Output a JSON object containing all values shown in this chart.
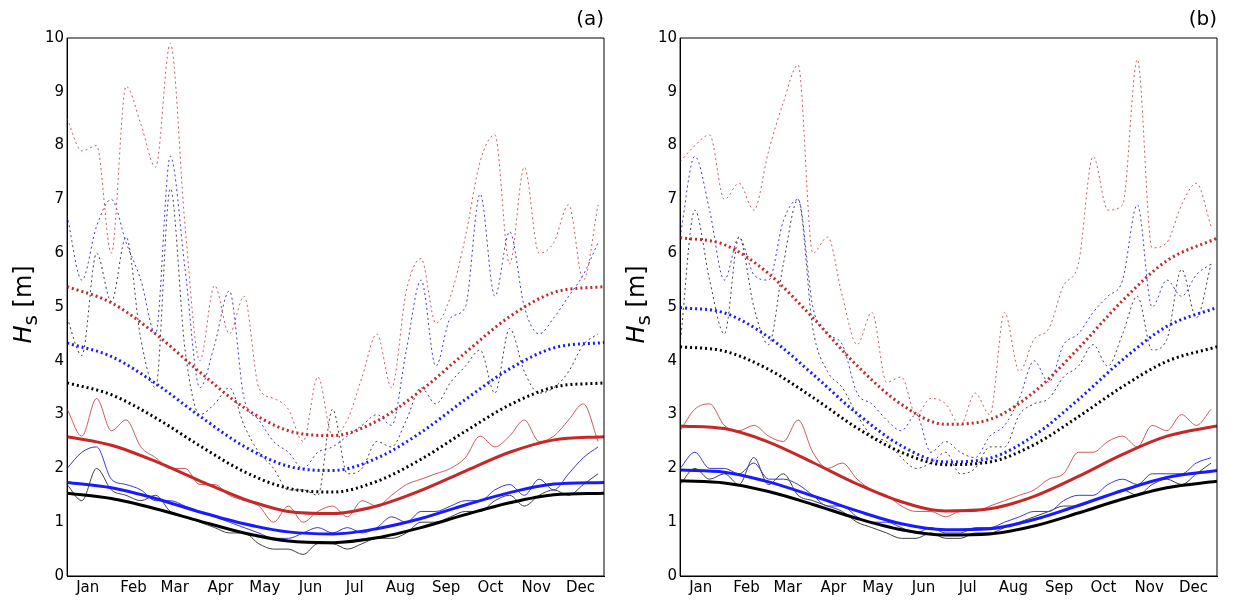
{
  "chart_data": [
    {
      "type": "line",
      "title": "(a)",
      "ylabel": "H$_{s}$ [m]",
      "xlim": [
        "--01-01",
        "--12-31"
      ],
      "ylim": [
        0,
        10
      ],
      "yticks": [
        0,
        1,
        2,
        3,
        4,
        5,
        6,
        7,
        8,
        9,
        10
      ],
      "xticks": [
        {
          "value": "--01-15",
          "label": "Jan"
        },
        {
          "value": "--02-15",
          "label": "Feb"
        },
        {
          "value": "--03-15",
          "label": "Mar"
        },
        {
          "value": "--04-15",
          "label": "Apr"
        },
        {
          "value": "--05-15",
          "label": "May"
        },
        {
          "value": "--06-15",
          "label": "Jun"
        },
        {
          "value": "--07-15",
          "label": "Jul"
        },
        {
          "value": "--08-15",
          "label": "Aug"
        },
        {
          "value": "--09-15",
          "label": "Sep"
        },
        {
          "value": "--10-15",
          "label": "Oct"
        },
        {
          "value": "--11-15",
          "label": "Nov"
        },
        {
          "value": "--12-15",
          "label": "Dec"
        }
      ],
      "x": [
        "--01-01",
        "--01-11",
        "--01-21",
        "--01-31",
        "--02-10",
        "--02-20",
        "--03-02",
        "--03-12",
        "--03-22",
        "--04-01",
        "--04-11",
        "--04-21",
        "--05-01",
        "--05-11",
        "--05-21",
        "--05-31",
        "--06-10",
        "--06-20",
        "--06-30",
        "--07-10",
        "--07-20",
        "--07-30",
        "--08-09",
        "--08-19",
        "--08-29",
        "--09-08",
        "--09-18",
        "--09-28",
        "--10-08",
        "--10-18",
        "--10-28",
        "--11-07",
        "--11-17",
        "--11-27",
        "--12-07",
        "--12-17",
        "--12-27"
      ],
      "series": [
        {
          "color": "#cc5a5a",
          "line_style": "dotted",
          "values": [
            8.5,
            7.9,
            8.0,
            6.0,
            9.1,
            8.4,
            7.6,
            9.9,
            6.5,
            4.0,
            5.4,
            4.5,
            5.2,
            3.5,
            3.3,
            3.1,
            2.5,
            3.7,
            2.6,
            2.9,
            3.7,
            4.5,
            3.5,
            5.3,
            5.9,
            4.7,
            5.2,
            6.3,
            7.7,
            8.2,
            5.8,
            7.6,
            6.0,
            6.2,
            6.9,
            5.5,
            6.9
          ]
        },
        {
          "color": "#3a3ad6",
          "line_style": "dotted",
          "values": [
            6.7,
            5.5,
            6.5,
            7.0,
            6.2,
            5.5,
            4.5,
            7.8,
            5.7,
            3.5,
            4.3,
            5.3,
            3.3,
            2.9,
            2.5,
            2.3,
            2.0,
            2.3,
            2.4,
            2.6,
            2.8,
            3.0,
            2.8,
            4.2,
            5.5,
            3.9,
            4.8,
            5.0,
            7.1,
            5.2,
            6.4,
            5.0,
            4.5,
            4.8,
            5.2,
            5.6,
            6.2
          ]
        },
        {
          "color": "#404040",
          "line_style": "dotted",
          "values": [
            4.8,
            4.1,
            6.0,
            5.1,
            6.3,
            4.4,
            3.5,
            7.2,
            4.2,
            3.0,
            3.2,
            3.5,
            2.8,
            2.3,
            2.0,
            1.6,
            1.6,
            1.5,
            3.1,
            1.9,
            2.0,
            2.5,
            2.4,
            2.9,
            3.5,
            3.2,
            3.6,
            3.9,
            4.2,
            3.4,
            4.6,
            3.8,
            3.4,
            3.5,
            3.8,
            4.3,
            4.5
          ]
        },
        {
          "color": "#cc5a5a",
          "line_style": "solid",
          "values": [
            3.1,
            2.6,
            3.3,
            2.7,
            2.9,
            2.4,
            2.2,
            2.0,
            2.0,
            1.7,
            1.7,
            1.5,
            1.4,
            1.3,
            1.0,
            1.3,
            1.0,
            1.2,
            1.3,
            1.1,
            1.4,
            1.3,
            1.5,
            1.7,
            1.8,
            1.9,
            2.0,
            2.2,
            2.6,
            2.4,
            2.6,
            2.9,
            2.5,
            2.6,
            2.9,
            3.2,
            2.5
          ]
        },
        {
          "color": "#3a3ad6",
          "line_style": "solid",
          "values": [
            2.0,
            2.3,
            2.4,
            1.8,
            1.7,
            1.6,
            1.4,
            1.4,
            1.3,
            1.2,
            1.1,
            1.0,
            0.9,
            0.8,
            0.7,
            0.7,
            0.8,
            0.9,
            0.8,
            0.9,
            0.8,
            0.9,
            1.1,
            1.0,
            1.2,
            1.2,
            1.3,
            1.4,
            1.4,
            1.6,
            1.7,
            1.5,
            1.8,
            1.6,
            1.9,
            2.2,
            2.4
          ]
        },
        {
          "color": "#404040",
          "line_style": "solid",
          "values": [
            1.7,
            1.4,
            2.0,
            1.6,
            1.5,
            1.4,
            1.5,
            1.2,
            1.1,
            1.0,
            0.9,
            0.8,
            0.8,
            0.6,
            0.5,
            0.5,
            0.4,
            0.6,
            0.6,
            0.5,
            0.6,
            0.7,
            0.7,
            0.8,
            1.0,
            1.0,
            1.1,
            1.2,
            1.2,
            1.4,
            1.5,
            1.3,
            1.5,
            1.6,
            1.5,
            1.7,
            1.9
          ]
        },
        {
          "color": "#c62828",
          "line_style": "dotted",
          "x": [
            "--01-01",
            "--01-31",
            "--03-02",
            "--04-01",
            "--05-01",
            "--05-31",
            "--06-30",
            "--07-30",
            "--08-29",
            "--09-28",
            "--10-28",
            "--11-27",
            "--12-31"
          ],
          "values": [
            5.38,
            5.08,
            4.5,
            3.79,
            3.13,
            2.7,
            2.61,
            2.88,
            3.45,
            4.15,
            4.82,
            5.27,
            5.38
          ]
        },
        {
          "color": "#1a1aff",
          "line_style": "dotted",
          "x": [
            "--01-01",
            "--01-31",
            "--03-02",
            "--04-01",
            "--05-01",
            "--05-31",
            "--06-30",
            "--07-30",
            "--08-29",
            "--09-28",
            "--10-28",
            "--11-27",
            "--12-31"
          ],
          "values": [
            4.33,
            4.08,
            3.58,
            2.97,
            2.41,
            2.04,
            1.96,
            2.19,
            2.67,
            3.28,
            3.85,
            4.24,
            4.34
          ]
        },
        {
          "color": "#000000",
          "line_style": "dotted",
          "x": [
            "--01-01",
            "--01-31",
            "--03-02",
            "--04-01",
            "--05-01",
            "--05-31",
            "--06-30",
            "--07-30",
            "--08-29",
            "--09-28",
            "--10-28",
            "--11-27",
            "--12-31"
          ],
          "values": [
            3.59,
            3.37,
            2.94,
            2.42,
            1.94,
            1.63,
            1.56,
            1.76,
            2.17,
            2.69,
            3.18,
            3.51,
            3.59
          ]
        },
        {
          "color": "#c62828",
          "line_style": "solid",
          "x": [
            "--01-01",
            "--01-31",
            "--03-02",
            "--04-01",
            "--05-01",
            "--05-31",
            "--06-30",
            "--07-30",
            "--08-29",
            "--09-28",
            "--10-28",
            "--11-27",
            "--12-31"
          ],
          "values": [
            2.59,
            2.43,
            2.13,
            1.77,
            1.43,
            1.2,
            1.16,
            1.3,
            1.59,
            1.95,
            2.3,
            2.53,
            2.59
          ]
        },
        {
          "color": "#1a1aff",
          "line_style": "solid",
          "x": [
            "--01-01",
            "--01-31",
            "--03-02",
            "--04-01",
            "--05-01",
            "--05-31",
            "--06-30",
            "--07-30",
            "--08-29",
            "--09-28",
            "--10-28",
            "--11-27",
            "--12-31"
          ],
          "values": [
            1.74,
            1.64,
            1.44,
            1.19,
            0.97,
            0.82,
            0.78,
            0.88,
            1.07,
            1.32,
            1.55,
            1.71,
            1.74
          ]
        },
        {
          "color": "#000000",
          "line_style": "solid",
          "x": [
            "--01-01",
            "--01-31",
            "--03-02",
            "--04-01",
            "--05-01",
            "--05-31",
            "--06-30",
            "--07-30",
            "--08-29",
            "--09-28",
            "--10-28",
            "--11-27",
            "--12-31"
          ],
          "values": [
            1.54,
            1.44,
            1.25,
            1.02,
            0.8,
            0.65,
            0.62,
            0.71,
            0.9,
            1.14,
            1.36,
            1.51,
            1.54
          ]
        }
      ]
    },
    {
      "type": "line",
      "title": "(b)",
      "ylabel": "H$_{s}$ [m]",
      "xlim": [
        "--01-01",
        "--12-31"
      ],
      "ylim": [
        0,
        10
      ],
      "yticks": [
        0,
        1,
        2,
        3,
        4,
        5,
        6,
        7,
        8,
        9,
        10
      ],
      "xticks": [
        {
          "value": "--01-15",
          "label": "Jan"
        },
        {
          "value": "--02-15",
          "label": "Feb"
        },
        {
          "value": "--03-15",
          "label": "Mar"
        },
        {
          "value": "--04-15",
          "label": "Apr"
        },
        {
          "value": "--05-15",
          "label": "May"
        },
        {
          "value": "--06-15",
          "label": "Jun"
        },
        {
          "value": "--07-15",
          "label": "Jul"
        },
        {
          "value": "--08-15",
          "label": "Aug"
        },
        {
          "value": "--09-15",
          "label": "Sep"
        },
        {
          "value": "--10-15",
          "label": "Oct"
        },
        {
          "value": "--11-15",
          "label": "Nov"
        },
        {
          "value": "--12-15",
          "label": "Dec"
        }
      ],
      "x": [
        "--01-01",
        "--01-11",
        "--01-21",
        "--01-31",
        "--02-10",
        "--02-20",
        "--03-02",
        "--03-12",
        "--03-22",
        "--04-01",
        "--04-11",
        "--04-21",
        "--05-01",
        "--05-11",
        "--05-21",
        "--05-31",
        "--06-10",
        "--06-20",
        "--06-30",
        "--07-10",
        "--07-20",
        "--07-30",
        "--08-09",
        "--08-19",
        "--08-29",
        "--09-08",
        "--09-18",
        "--09-28",
        "--10-08",
        "--10-18",
        "--10-28",
        "--11-07",
        "--11-17",
        "--11-27",
        "--12-07",
        "--12-17",
        "--12-27"
      ],
      "series": [
        {
          "color": "#cc5a5a",
          "line_style": "dotted",
          "values": [
            7.7,
            8.0,
            8.2,
            7.0,
            7.3,
            6.8,
            7.9,
            8.8,
            9.5,
            6.0,
            6.3,
            5.2,
            4.3,
            4.9,
            3.6,
            3.7,
            3.0,
            3.3,
            3.2,
            2.8,
            3.4,
            3.0,
            4.9,
            3.8,
            4.4,
            4.6,
            5.4,
            5.8,
            7.8,
            6.8,
            6.9,
            9.6,
            6.1,
            6.2,
            6.9,
            7.3,
            6.5
          ]
        },
        {
          "color": "#3a3ad6",
          "line_style": "dotted",
          "values": [
            6.3,
            7.8,
            6.8,
            5.5,
            6.3,
            5.6,
            5.5,
            6.6,
            7.0,
            5.0,
            4.5,
            4.3,
            3.4,
            3.2,
            2.9,
            2.7,
            3.0,
            2.3,
            2.5,
            2.3,
            2.2,
            2.6,
            2.8,
            3.3,
            4.0,
            3.6,
            4.3,
            4.5,
            4.9,
            5.2,
            5.5,
            6.9,
            5.0,
            5.5,
            5.2,
            5.6,
            5.8
          ]
        },
        {
          "color": "#404040",
          "line_style": "dotted",
          "values": [
            4.3,
            6.8,
            5.5,
            4.5,
            6.3,
            5.0,
            4.3,
            5.8,
            7.0,
            4.6,
            3.8,
            3.5,
            3.0,
            2.6,
            2.5,
            2.2,
            2.0,
            2.1,
            2.3,
            1.9,
            2.0,
            2.4,
            2.4,
            3.0,
            3.2,
            3.3,
            3.7,
            3.9,
            4.3,
            3.9,
            4.5,
            5.2,
            4.2,
            4.4,
            5.7,
            4.8,
            5.8
          ]
        },
        {
          "color": "#cc5a5a",
          "line_style": "solid",
          "values": [
            2.7,
            3.1,
            3.2,
            2.8,
            2.7,
            2.8,
            2.6,
            2.5,
            2.9,
            2.3,
            2.0,
            2.1,
            1.8,
            1.6,
            1.5,
            1.3,
            1.2,
            1.2,
            1.1,
            1.2,
            1.2,
            1.3,
            1.4,
            1.5,
            1.6,
            1.8,
            1.9,
            2.3,
            2.3,
            2.5,
            2.6,
            2.4,
            2.8,
            2.7,
            3.0,
            2.8,
            3.1
          ]
        },
        {
          "color": "#3a3ad6",
          "line_style": "solid",
          "values": [
            2.0,
            2.3,
            2.0,
            2.0,
            1.9,
            2.1,
            1.8,
            1.8,
            1.7,
            1.5,
            1.3,
            1.3,
            1.1,
            1.0,
            1.0,
            0.9,
            0.8,
            0.9,
            0.8,
            0.8,
            0.9,
            0.9,
            1.0,
            1.1,
            1.2,
            1.2,
            1.4,
            1.5,
            1.5,
            1.7,
            1.8,
            1.7,
            1.9,
            1.9,
            1.9,
            2.1,
            2.2
          ]
        },
        {
          "color": "#404040",
          "line_style": "solid",
          "values": [
            1.7,
            2.0,
            1.8,
            1.9,
            1.7,
            2.2,
            1.7,
            1.9,
            1.5,
            1.4,
            1.3,
            1.2,
            1.0,
            0.9,
            0.8,
            0.7,
            0.7,
            0.8,
            0.7,
            0.7,
            0.8,
            0.8,
            0.9,
            1.0,
            1.1,
            1.2,
            1.3,
            1.3,
            1.4,
            1.5,
            1.6,
            1.5,
            1.7,
            1.8,
            1.7,
            1.9,
            2.1
          ]
        },
        {
          "color": "#c62828",
          "line_style": "dotted",
          "x": [
            "--01-01",
            "--01-31",
            "--03-02",
            "--04-01",
            "--05-01",
            "--05-31",
            "--06-30",
            "--07-30",
            "--08-29",
            "--09-28",
            "--10-28",
            "--11-27",
            "--12-31"
          ],
          "values": [
            6.29,
            6.16,
            5.62,
            4.8,
            3.91,
            3.19,
            2.82,
            2.91,
            3.42,
            4.23,
            5.12,
            5.86,
            6.28
          ]
        },
        {
          "color": "#1a1aff",
          "line_style": "dotted",
          "x": [
            "--01-01",
            "--01-31",
            "--03-02",
            "--04-01",
            "--05-01",
            "--05-31",
            "--06-30",
            "--07-30",
            "--08-29",
            "--09-28",
            "--10-28",
            "--11-27",
            "--12-31"
          ],
          "values": [
            4.99,
            4.89,
            4.44,
            3.75,
            3.02,
            2.42,
            2.12,
            2.19,
            2.61,
            3.28,
            4.02,
            4.64,
            4.99
          ]
        },
        {
          "color": "#000000",
          "line_style": "dotted",
          "x": [
            "--01-01",
            "--01-31",
            "--03-02",
            "--04-01",
            "--05-01",
            "--05-31",
            "--06-30",
            "--07-30",
            "--08-29",
            "--09-28",
            "--10-28",
            "--11-27",
            "--12-31"
          ],
          "values": [
            4.26,
            4.18,
            3.84,
            3.32,
            2.75,
            2.3,
            2.07,
            2.12,
            2.44,
            2.96,
            3.52,
            3.99,
            4.26
          ]
        },
        {
          "color": "#c62828",
          "line_style": "solid",
          "x": [
            "--01-01",
            "--01-31",
            "--03-02",
            "--04-01",
            "--05-01",
            "--05-31",
            "--06-30",
            "--07-30",
            "--08-29",
            "--09-28",
            "--10-28",
            "--11-27",
            "--12-31"
          ],
          "values": [
            2.79,
            2.74,
            2.49,
            2.11,
            1.71,
            1.38,
            1.21,
            1.25,
            1.48,
            1.85,
            2.26,
            2.6,
            2.79
          ]
        },
        {
          "color": "#1a1aff",
          "line_style": "solid",
          "x": [
            "--01-01",
            "--01-31",
            "--03-02",
            "--04-01",
            "--05-01",
            "--05-31",
            "--06-30",
            "--07-30",
            "--08-29",
            "--09-28",
            "--10-28",
            "--11-27",
            "--12-31"
          ],
          "values": [
            1.97,
            1.93,
            1.75,
            1.49,
            1.21,
            0.97,
            0.86,
            0.88,
            1.05,
            1.31,
            1.59,
            1.83,
            1.96
          ]
        },
        {
          "color": "#000000",
          "line_style": "solid",
          "x": [
            "--01-01",
            "--01-31",
            "--03-02",
            "--04-01",
            "--05-01",
            "--05-31",
            "--06-30",
            "--07-30",
            "--08-29",
            "--09-28",
            "--10-28",
            "--11-27",
            "--12-31"
          ],
          "values": [
            1.77,
            1.73,
            1.57,
            1.33,
            1.07,
            0.86,
            0.76,
            0.78,
            0.93,
            1.17,
            1.43,
            1.64,
            1.76
          ]
        }
      ]
    }
  ]
}
